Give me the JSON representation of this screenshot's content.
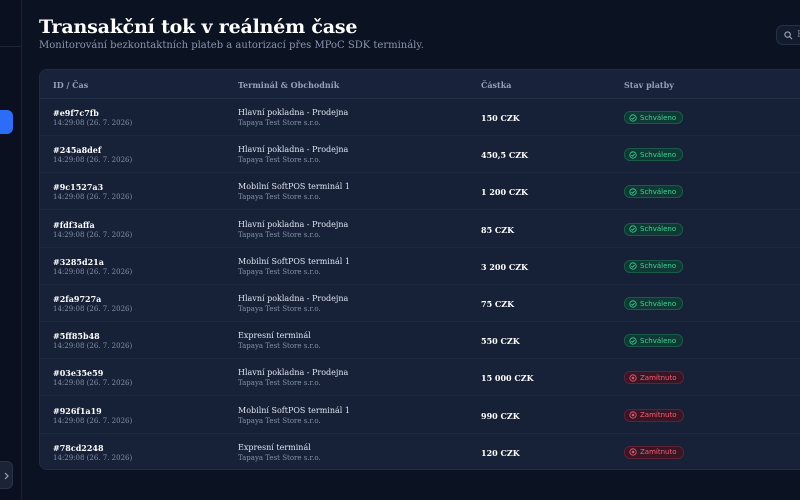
{
  "header": {
    "title": "Transakční tok v reálném čase",
    "subtitle": "Monitorování bezkontaktních plateb a autorizací přes MPoC SDK terminály."
  },
  "search": {
    "placeholder": "H"
  },
  "table": {
    "columns": [
      "ID / Čas",
      "Terminál & Obchodník",
      "Částka",
      "Stav platby"
    ],
    "rows": [
      {
        "id": "#e9f7c7fb",
        "time": "14:29:08 (26. 7. 2026)",
        "terminal": "Hlavní pokladna - Prodejna",
        "merchant": "Tapaya Test Store s.r.o.",
        "amount": "150 CZK",
        "status": "Schváleno",
        "status_type": "ok"
      },
      {
        "id": "#245a8def",
        "time": "14:29:08 (26. 7. 2026)",
        "terminal": "Hlavní pokladna - Prodejna",
        "merchant": "Tapaya Test Store s.r.o.",
        "amount": "450,5 CZK",
        "status": "Schváleno",
        "status_type": "ok"
      },
      {
        "id": "#9c1527a3",
        "time": "14:29:08 (26. 7. 2026)",
        "terminal": "Mobilní SoftPOS terminál 1",
        "merchant": "Tapaya Test Store s.r.o.",
        "amount": "1 200 CZK",
        "status": "Schváleno",
        "status_type": "ok"
      },
      {
        "id": "#fdf3affa",
        "time": "14:29:08 (26. 7. 2026)",
        "terminal": "Hlavní pokladna - Prodejna",
        "merchant": "Tapaya Test Store s.r.o.",
        "amount": "85 CZK",
        "status": "Schváleno",
        "status_type": "ok"
      },
      {
        "id": "#3285d21a",
        "time": "14:29:08 (26. 7. 2026)",
        "terminal": "Mobilní SoftPOS terminál 1",
        "merchant": "Tapaya Test Store s.r.o.",
        "amount": "3 200 CZK",
        "status": "Schváleno",
        "status_type": "ok"
      },
      {
        "id": "#2fa9727a",
        "time": "14:29:08 (26. 7. 2026)",
        "terminal": "Hlavní pokladna - Prodejna",
        "merchant": "Tapaya Test Store s.r.o.",
        "amount": "75 CZK",
        "status": "Schváleno",
        "status_type": "ok"
      },
      {
        "id": "#5ff85b48",
        "time": "14:29:08 (26. 7. 2026)",
        "terminal": "Expresní terminál",
        "merchant": "Tapaya Test Store s.r.o.",
        "amount": "550 CZK",
        "status": "Schváleno",
        "status_type": "ok"
      },
      {
        "id": "#03e35e59",
        "time": "14:29:08 (26. 7. 2026)",
        "terminal": "Hlavní pokladna - Prodejna",
        "merchant": "Tapaya Test Store s.r.o.",
        "amount": "15 000 CZK",
        "status": "Zamítnuto",
        "status_type": "bad"
      },
      {
        "id": "#926f1a19",
        "time": "14:29:08 (26. 7. 2026)",
        "terminal": "Mobilní SoftPOS terminál 1",
        "merchant": "Tapaya Test Store s.r.o.",
        "amount": "990 CZK",
        "status": "Zamítnuto",
        "status_type": "bad"
      },
      {
        "id": "#78cd2248",
        "time": "14:29:08 (26. 7. 2026)",
        "terminal": "Expresní terminál",
        "merchant": "Tapaya Test Store s.r.o.",
        "amount": "120 CZK",
        "status": "Zamítnuto",
        "status_type": "bad"
      }
    ]
  },
  "icons": {
    "approved": "check-circle-icon",
    "declined": "x-circle-icon",
    "search": "search-icon"
  },
  "colors": {
    "accent": "#2d6cf6",
    "approved": "#3fd39a",
    "declined": "#f0607a"
  }
}
